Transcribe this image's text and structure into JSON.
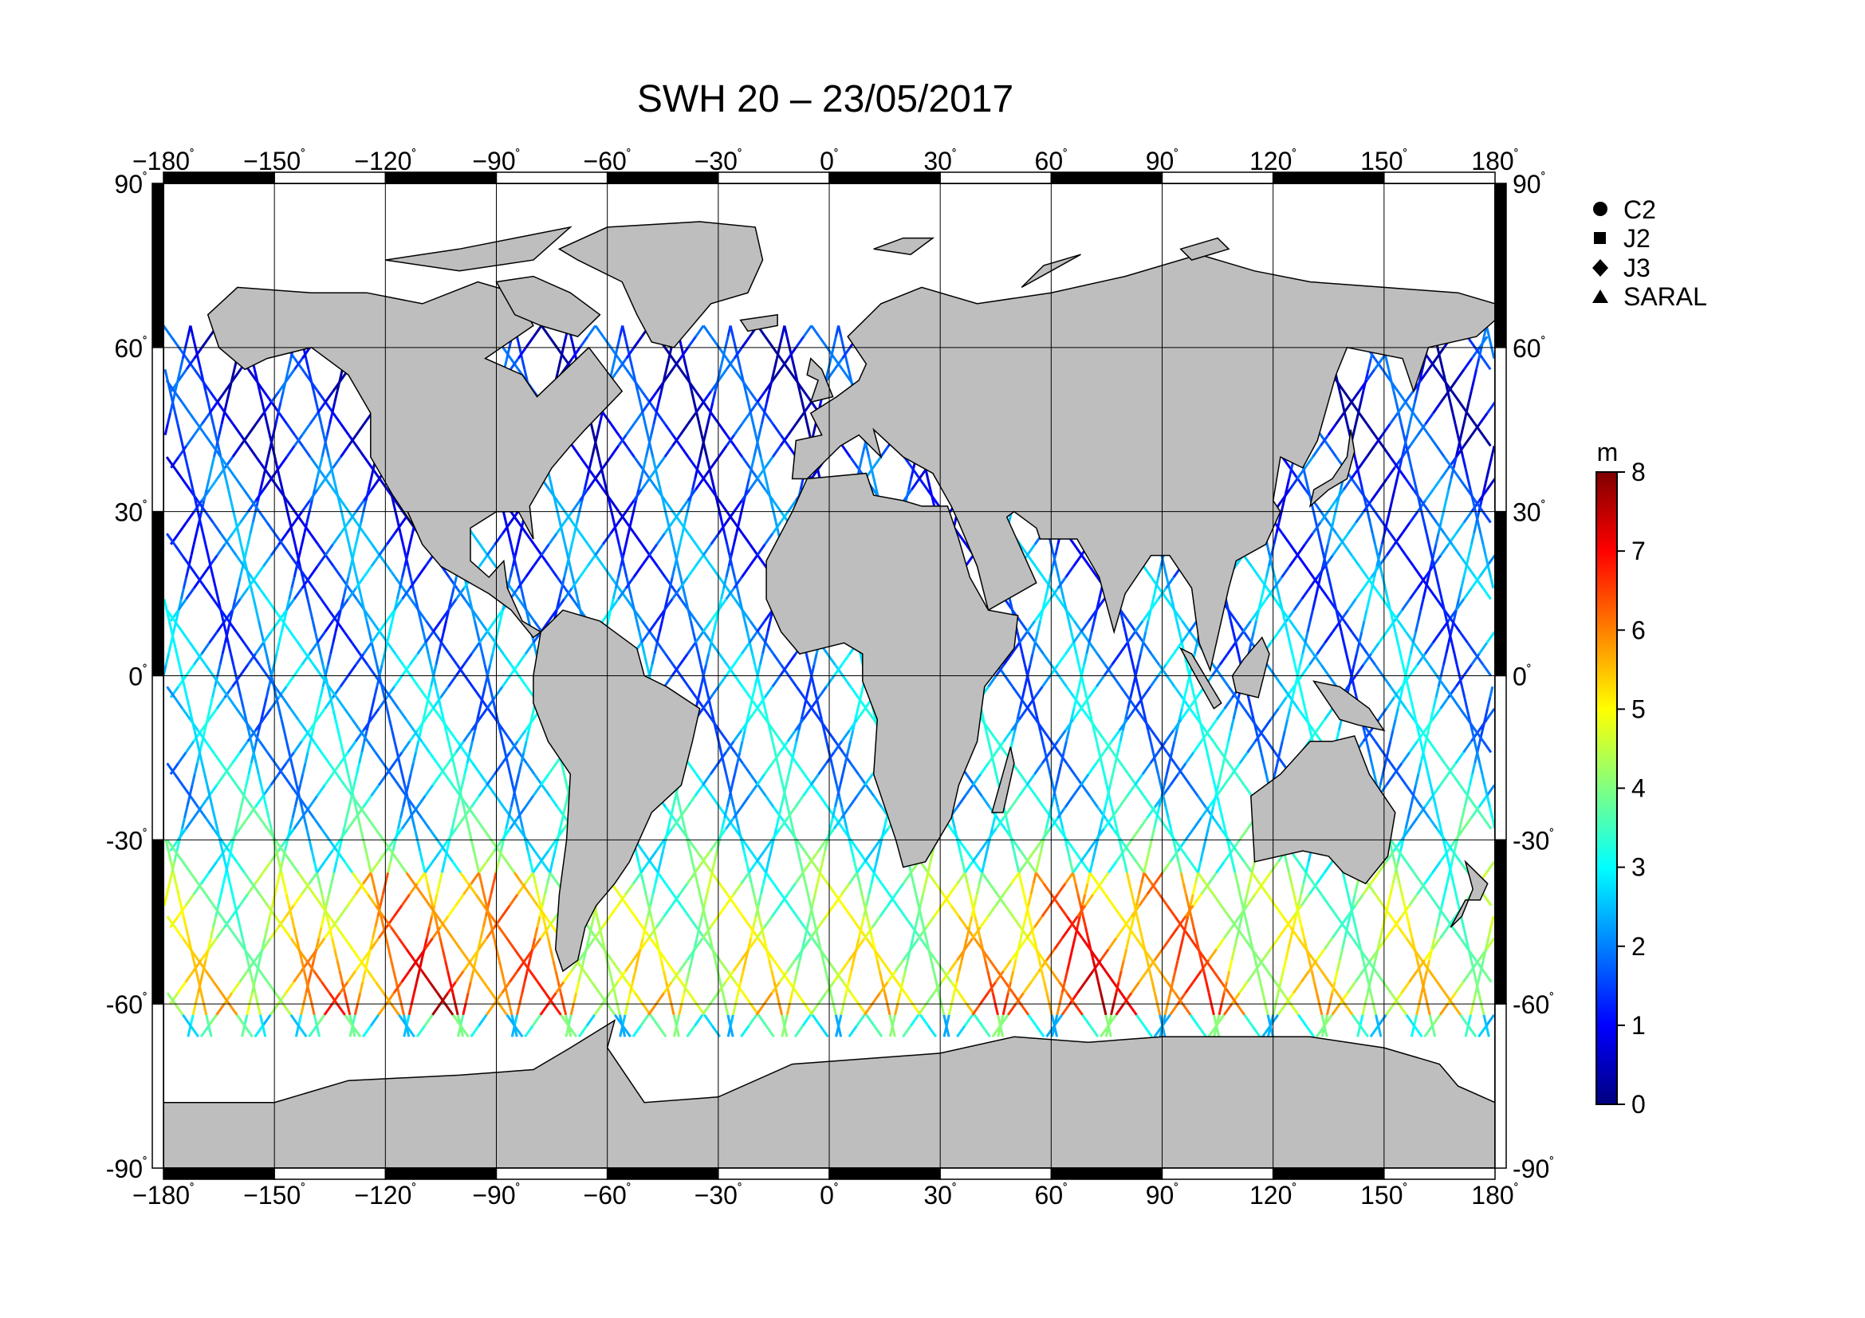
{
  "title": "SWH 20 – 23/05/2017",
  "lon_ticks": [
    "−180",
    "−150",
    "−120",
    "−90",
    "−60",
    "−30",
    "0",
    "30",
    "60",
    "90",
    "120",
    "150",
    "180"
  ],
  "lat_ticks": [
    "90",
    "60",
    "30",
    "0",
    "-30",
    "-60",
    "-90"
  ],
  "degree_mark": "˚",
  "legend": [
    {
      "label": "C2",
      "marker": "circle"
    },
    {
      "label": "J2",
      "marker": "square"
    },
    {
      "label": "J3",
      "marker": "diamond"
    },
    {
      "label": "SARAL",
      "marker": "triangle"
    }
  ],
  "colorbar": {
    "unit": "m",
    "ticks": [
      "0",
      "1",
      "2",
      "3",
      "4",
      "5",
      "6",
      "7",
      "8"
    ],
    "range": [
      0,
      8
    ],
    "colors": [
      "#00007f",
      "#0000ff",
      "#0080ff",
      "#00ffff",
      "#80ff80",
      "#ffff00",
      "#ff8000",
      "#ff0000",
      "#7f0000"
    ]
  },
  "colors": {
    "land": "#bebebe",
    "coast": "#000000",
    "grid": "#000000",
    "frame": "#000000"
  },
  "map": {
    "projection": "equirectangular",
    "lon_range": [
      -180,
      180
    ],
    "lat_range": [
      -90,
      90
    ],
    "swh_regimes": [
      {
        "lat_band": [
          20,
          70
        ],
        "swh_m": [
          0.5,
          3
        ]
      },
      {
        "lat_band": [
          -20,
          20
        ],
        "swh_m": [
          1.5,
          3
        ]
      },
      {
        "lat_band": [
          -35,
          -20
        ],
        "swh_m": [
          2.5,
          4
        ]
      },
      {
        "lat_band": [
          -66,
          -35
        ],
        "swh_m": [
          3,
          8
        ]
      }
    ]
  }
}
